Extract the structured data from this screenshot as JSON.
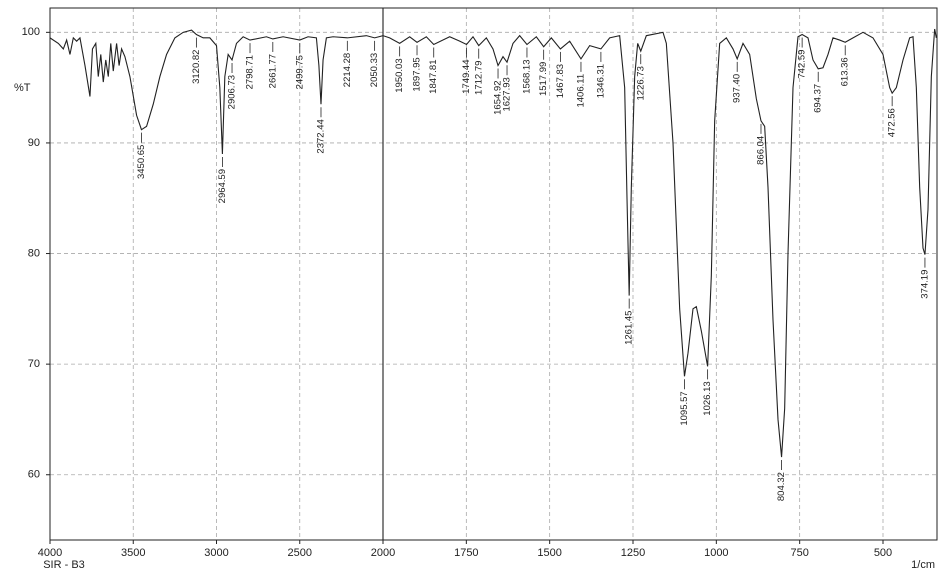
{
  "chart_data": {
    "type": "line",
    "y_label": "%T",
    "x_label": "1/cm",
    "sample": "SIR - B3",
    "color": "#222222",
    "grid": true,
    "xlim": [
      4000,
      338
    ],
    "x_scale_change": 2000,
    "xticks": [
      4000,
      3500,
      3000,
      2500,
      2000,
      1750,
      1500,
      1250,
      1000,
      750,
      500
    ],
    "ylim": [
      54.1,
      102.2
    ],
    "yticks": [
      60,
      70,
      80,
      90,
      100
    ],
    "x": [
      4000,
      3950,
      3920,
      3900,
      3880,
      3860,
      3840,
      3820,
      3790,
      3760,
      3745,
      3725,
      3710,
      3695,
      3680,
      3665,
      3650,
      3635,
      3620,
      3600,
      3585,
      3570,
      3550,
      3520,
      3480,
      3450.65,
      3420,
      3380,
      3340,
      3300,
      3250,
      3200,
      3150,
      3120.82,
      3080,
      3040,
      3000,
      2980,
      2964.59,
      2950,
      2930,
      2906.73,
      2880,
      2840,
      2798.71,
      2700,
      2661.77,
      2600,
      2499.75,
      2450,
      2400,
      2385,
      2372.44,
      2360,
      2340,
      2300,
      2214.28,
      2100,
      2050.33,
      2000,
      1980,
      1950.03,
      1920,
      1897.95,
      1870,
      1847.81,
      1800,
      1770,
      1749.44,
      1730,
      1712.79,
      1690,
      1670,
      1654.92,
      1640,
      1627.93,
      1610,
      1590,
      1568.13,
      1540,
      1517.99,
      1495,
      1467.83,
      1440,
      1406.11,
      1380,
      1346.31,
      1320,
      1290,
      1275,
      1268,
      1261.45,
      1255,
      1245,
      1236,
      1226.73,
      1210,
      1160,
      1150,
      1130,
      1110,
      1095.57,
      1085,
      1070,
      1060,
      1045,
      1026.13,
      1015,
      1005,
      990,
      970,
      950,
      937.4,
      920,
      900,
      880,
      866.04,
      855,
      845,
      830,
      815,
      804.32,
      795,
      785,
      770,
      755,
      742.59,
      725,
      710,
      694.37,
      680,
      665,
      650,
      630,
      613.36,
      590,
      560,
      530,
      500,
      480,
      472.56,
      460,
      440,
      420,
      410,
      400,
      390,
      380,
      374.19,
      365,
      355,
      345,
      340
    ],
    "values": [
      99.5,
      99,
      98.5,
      99.3,
      98,
      99.5,
      99.2,
      99.5,
      97,
      94.2,
      98.5,
      99,
      96,
      98,
      95.5,
      97.5,
      96,
      99,
      96.5,
      99,
      97,
      98.5,
      97.8,
      96,
      92.5,
      91.2,
      91.5,
      93.5,
      96,
      98,
      99.5,
      100,
      100.2,
      99.8,
      99.5,
      99.5,
      98.8,
      95,
      89,
      96,
      98,
      97.5,
      99,
      99.6,
      99.3,
      99.6,
      99.4,
      99.6,
      99.3,
      99.6,
      99.5,
      97,
      93.5,
      97.5,
      99.5,
      99.6,
      99.5,
      99.7,
      99.5,
      99.7,
      99.5,
      99,
      99.6,
      99.1,
      99.6,
      98.9,
      99.6,
      99.2,
      98.9,
      99.6,
      98.8,
      99.5,
      98.5,
      97,
      97.8,
      97.3,
      99,
      99.7,
      98.9,
      99.6,
      98.7,
      99.5,
      98.5,
      99.2,
      97.6,
      98.8,
      98.5,
      99.5,
      99.7,
      95,
      85,
      76.2,
      86,
      96,
      99,
      98.3,
      99.7,
      100,
      99,
      90,
      75,
      68.9,
      71,
      75,
      75.2,
      73,
      69.8,
      78,
      92,
      99,
      99.5,
      98.5,
      97.6,
      99,
      98,
      94,
      92,
      91.5,
      86,
      74,
      65,
      61.6,
      66,
      80,
      95,
      99.6,
      99.8,
      99.5,
      97.5,
      96.7,
      96.8,
      98,
      99.5,
      99.3,
      99.1,
      99.5,
      100,
      99.5,
      98,
      95,
      94.5,
      95,
      97.5,
      99.5,
      99.6,
      95,
      86,
      80.5,
      79.9,
      84,
      96,
      100.3,
      99.5
    ],
    "peaks": [
      3450.65,
      3120.82,
      2964.59,
      2906.73,
      2798.71,
      2661.77,
      2499.75,
      2372.44,
      2214.28,
      2050.33,
      1950.03,
      1897.95,
      1847.81,
      1749.44,
      1712.79,
      1654.92,
      1627.93,
      1568.13,
      1517.99,
      1467.83,
      1406.11,
      1346.31,
      1261.45,
      1226.73,
      1095.57,
      1026.13,
      {
        "value": 937.4,
        "label": "937.40"
      },
      866.04,
      804.32,
      742.59,
      694.37,
      613.36,
      472.56,
      374.19
    ]
  }
}
